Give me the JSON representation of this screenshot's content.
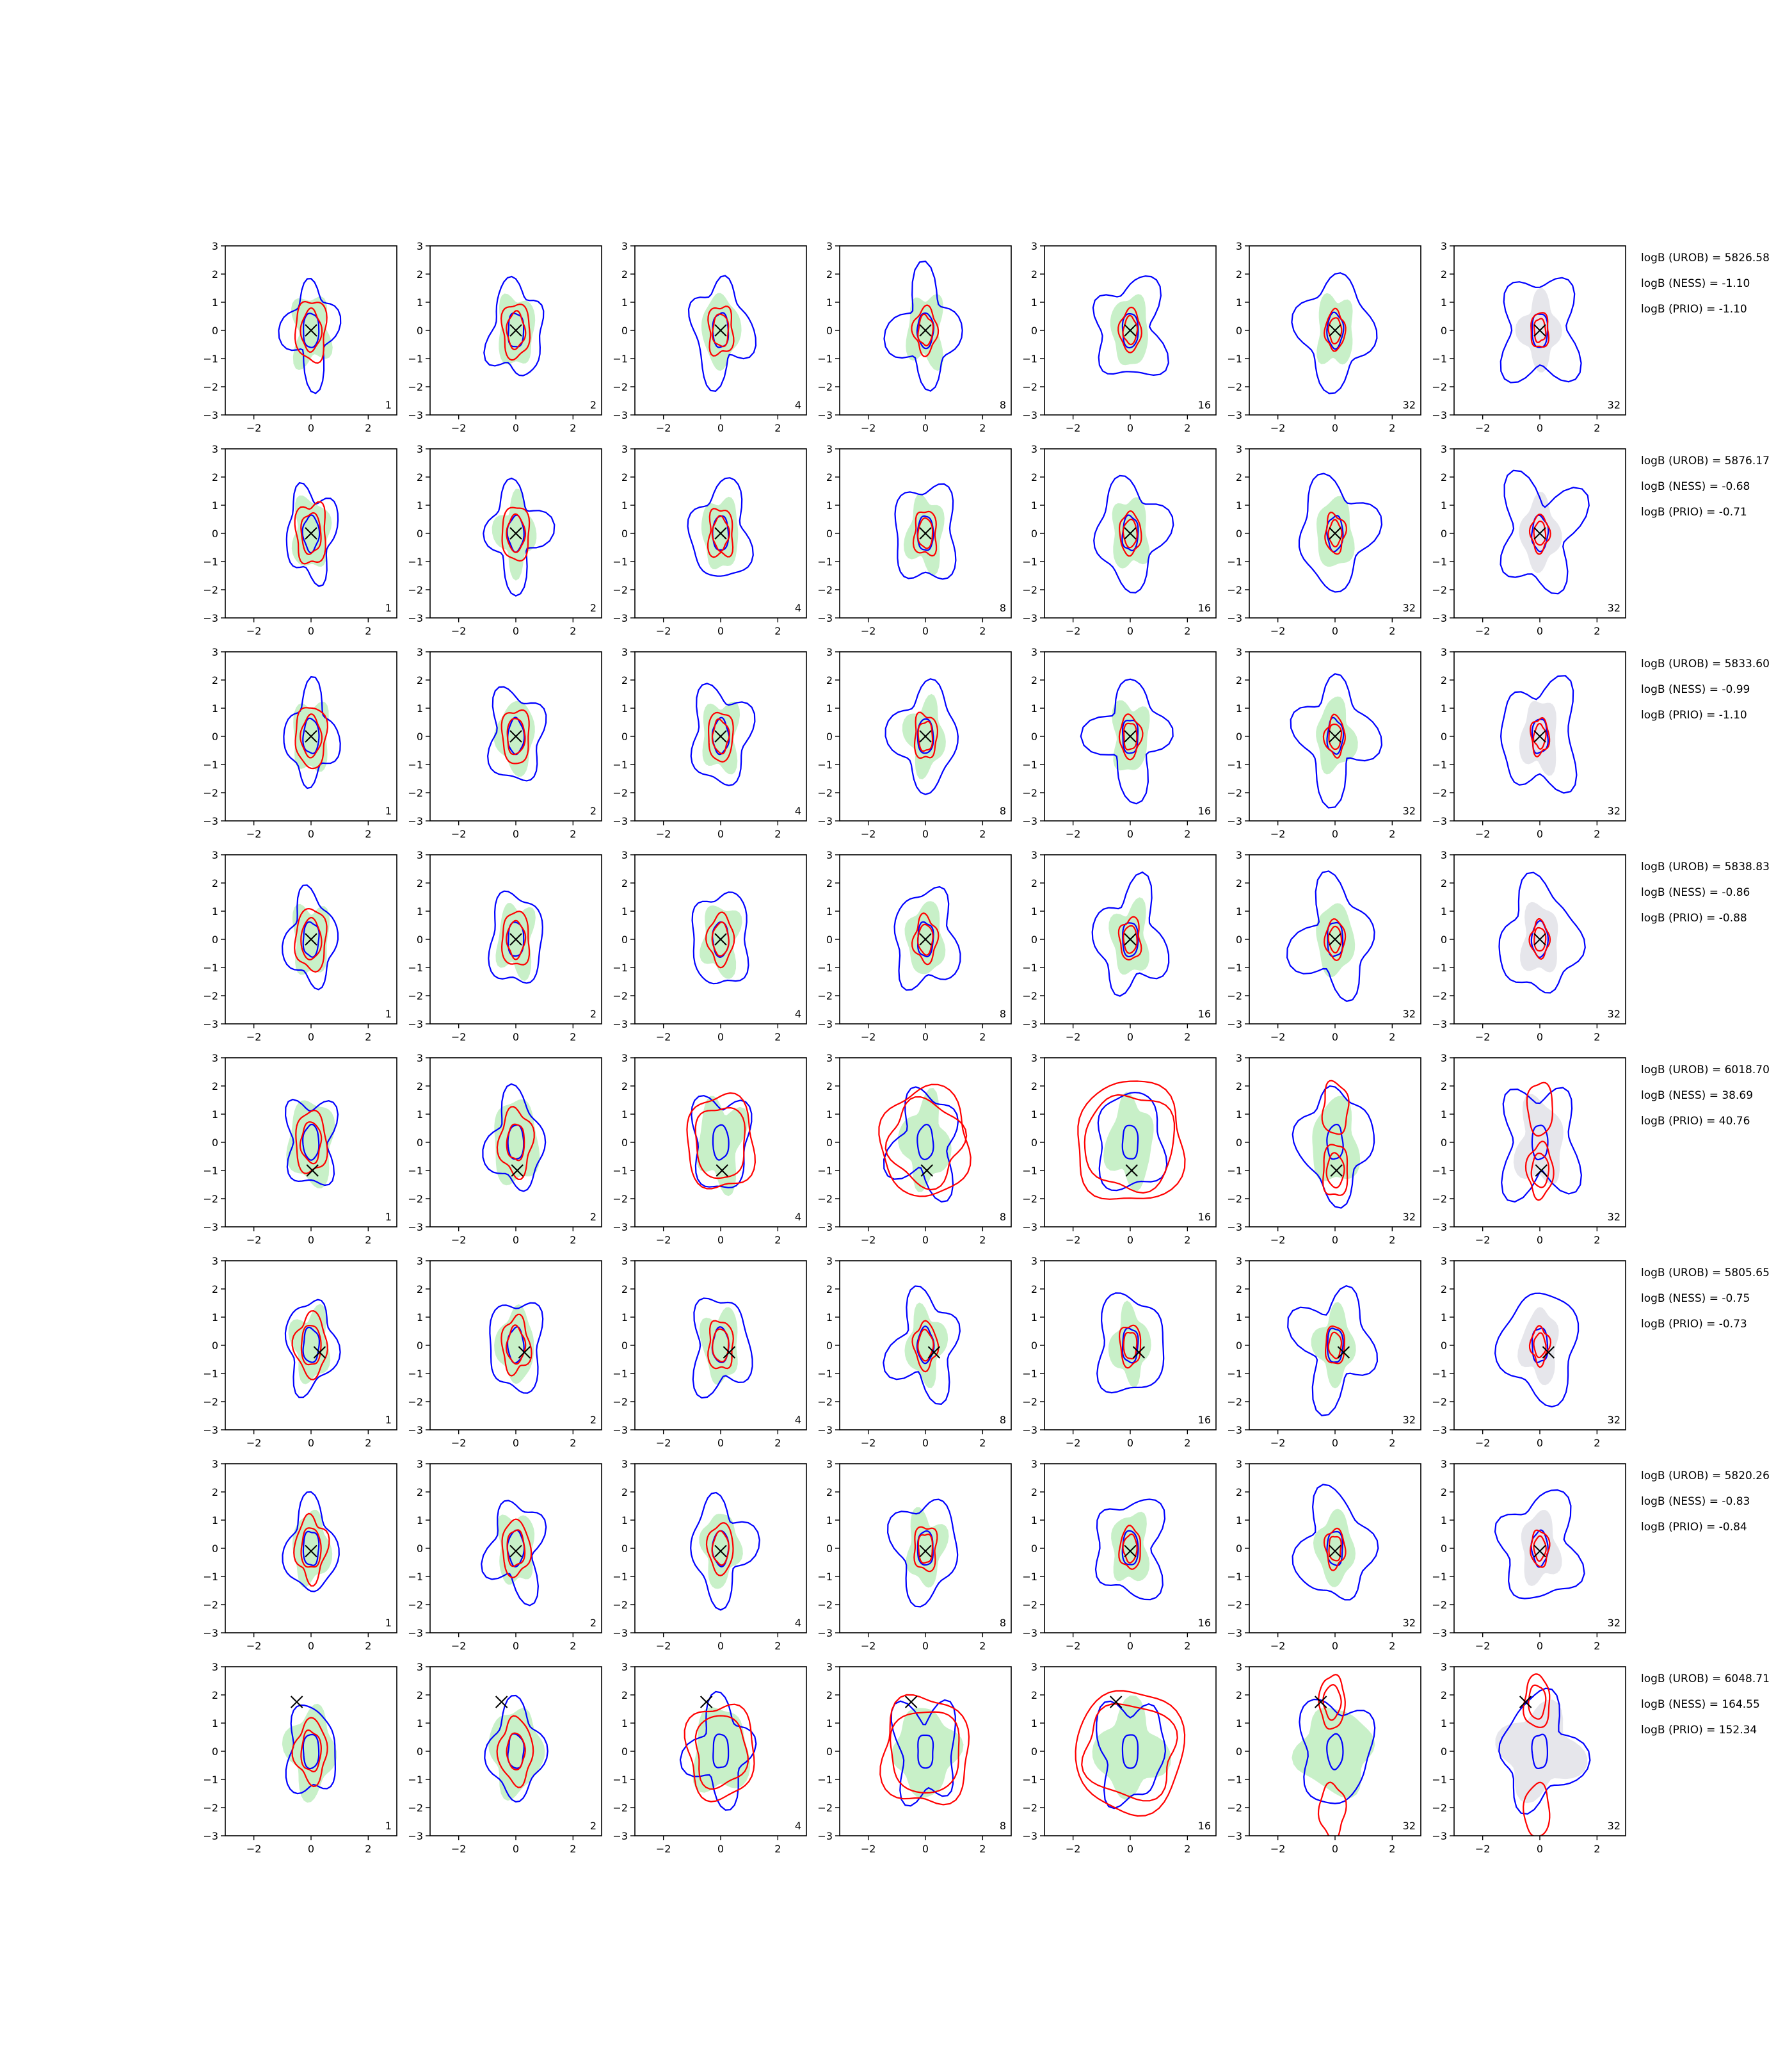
{
  "chart_data": {
    "type": "contour",
    "grid": {
      "rows": 8,
      "cols": 7
    },
    "xlim": [
      -3,
      3
    ],
    "ylim": [
      -3,
      3
    ],
    "xticks": [
      -2,
      0,
      2
    ],
    "yticks": [
      -3,
      -2,
      -1,
      0,
      1,
      2,
      3
    ],
    "column_labels": [
      "1",
      "2",
      "4",
      "8",
      "16",
      "32",
      "32"
    ],
    "colors": {
      "blue_contour": "#0000ff",
      "red_contour": "#ff0000",
      "green_fill": "#c8f0c8",
      "grey_fill": "#e6e6eb",
      "marker": "#000000"
    },
    "rows": [
      {
        "marker": [
          0.0,
          0.0
        ],
        "annotations": [
          "logB (UROB) = 5826.58",
          "logB (NESS) = -1.10",
          "logB (PRIO) = -1.10"
        ]
      },
      {
        "marker": [
          0.0,
          0.0
        ],
        "annotations": [
          "logB (UROB) = 5876.17",
          "logB (NESS) = -0.68",
          "logB (PRIO) = -0.71"
        ]
      },
      {
        "marker": [
          0.0,
          0.0
        ],
        "annotations": [
          "logB (UROB) = 5833.60",
          "logB (NESS) = -0.99",
          "logB (PRIO) = -1.10"
        ]
      },
      {
        "marker": [
          0.0,
          0.0
        ],
        "annotations": [
          "logB (UROB) = 5838.83",
          "logB (NESS) = -0.86",
          "logB (PRIO) = -0.88"
        ]
      },
      {
        "marker": [
          0.05,
          -1.0
        ],
        "annotations": [
          "logB (UROB) = 6018.70",
          "logB (NESS) = 38.69",
          "logB (PRIO) = 40.76"
        ]
      },
      {
        "marker": [
          0.3,
          -0.25
        ],
        "annotations": [
          "logB (UROB) = 5805.65",
          "logB (NESS) = -0.75",
          "logB (PRIO) = -0.73"
        ]
      },
      {
        "marker": [
          0.0,
          -0.1
        ],
        "annotations": [
          "logB (UROB) = 5820.26",
          "logB (NESS) = -0.83",
          "logB (PRIO) = -0.84"
        ]
      },
      {
        "marker": [
          -0.5,
          1.75
        ],
        "annotations": [
          "logB (UROB) = 6048.71",
          "logB (NESS) = 164.55",
          "logB (PRIO) = 152.34"
        ]
      }
    ]
  }
}
